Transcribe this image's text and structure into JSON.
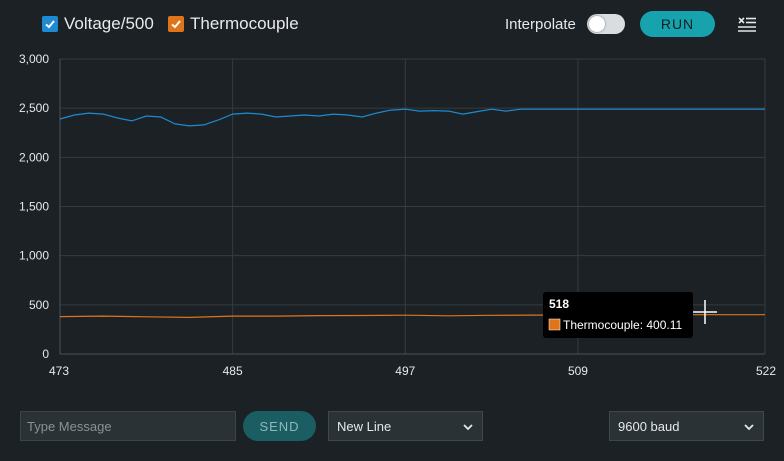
{
  "toolbar": {
    "series": [
      {
        "label": "Voltage/500",
        "checked": true,
        "color": "#1f8ad4"
      },
      {
        "label": "Thermocouple",
        "checked": true,
        "color": "#e07418"
      }
    ],
    "interpolate_label": "Interpolate",
    "interpolate_on": false,
    "run_label": "RUN",
    "run_color": "#16a3ad",
    "clear_icon": "clear-list-icon"
  },
  "chart_data": {
    "type": "line",
    "xlim": [
      473,
      522
    ],
    "ylim": [
      0,
      3000
    ],
    "x_ticks": [
      "473",
      "485",
      "497",
      "509",
      "522"
    ],
    "y_ticks": [
      "3,000",
      "2,500",
      "2,000",
      "1,500",
      "1,000",
      "500",
      "0"
    ],
    "grid": true,
    "series": [
      {
        "name": "Voltage/500",
        "color": "#1f8ad4",
        "x": [
          473,
          474,
          475,
          476,
          477,
          478,
          479,
          480,
          481,
          482,
          483,
          484,
          485,
          486,
          487,
          488,
          489,
          490,
          491,
          492,
          493,
          494,
          495,
          496,
          497,
          498,
          499,
          500,
          501,
          502,
          503,
          504,
          505,
          506,
          507,
          508,
          509,
          510,
          511,
          512,
          513,
          514,
          515,
          516,
          517,
          518,
          519,
          520,
          521,
          522
        ],
        "y": [
          2390,
          2430,
          2450,
          2440,
          2400,
          2370,
          2420,
          2410,
          2340,
          2320,
          2330,
          2380,
          2440,
          2450,
          2440,
          2410,
          2420,
          2430,
          2420,
          2440,
          2430,
          2410,
          2450,
          2480,
          2490,
          2470,
          2475,
          2470,
          2440,
          2465,
          2490,
          2470,
          2490,
          2490,
          2490,
          2490,
          2490,
          2490,
          2490,
          2490,
          2490,
          2490,
          2490,
          2490,
          2490,
          2490,
          2490,
          2490,
          2490,
          2490
        ]
      },
      {
        "name": "Thermocouple",
        "color": "#e07418",
        "x": [
          473,
          476,
          479,
          482,
          485,
          488,
          491,
          494,
          497,
          500,
          503,
          506,
          509,
          512,
          515,
          518,
          521,
          522
        ],
        "y": [
          380,
          385,
          378,
          372,
          385,
          385,
          390,
          392,
          395,
          388,
          394,
          396,
          398,
          399,
          400,
          400,
          400,
          400
        ]
      }
    ],
    "tooltip": {
      "x_value": "518",
      "series_label": "Thermocouple: 400.11",
      "color": "#e07418"
    }
  },
  "bottom": {
    "message_placeholder": "Type Message",
    "send_label": "SEND",
    "send_color": "#1a5e64",
    "send_text_color": "#8fb6b9",
    "line_ending": "New Line",
    "baud": "9600 baud"
  }
}
